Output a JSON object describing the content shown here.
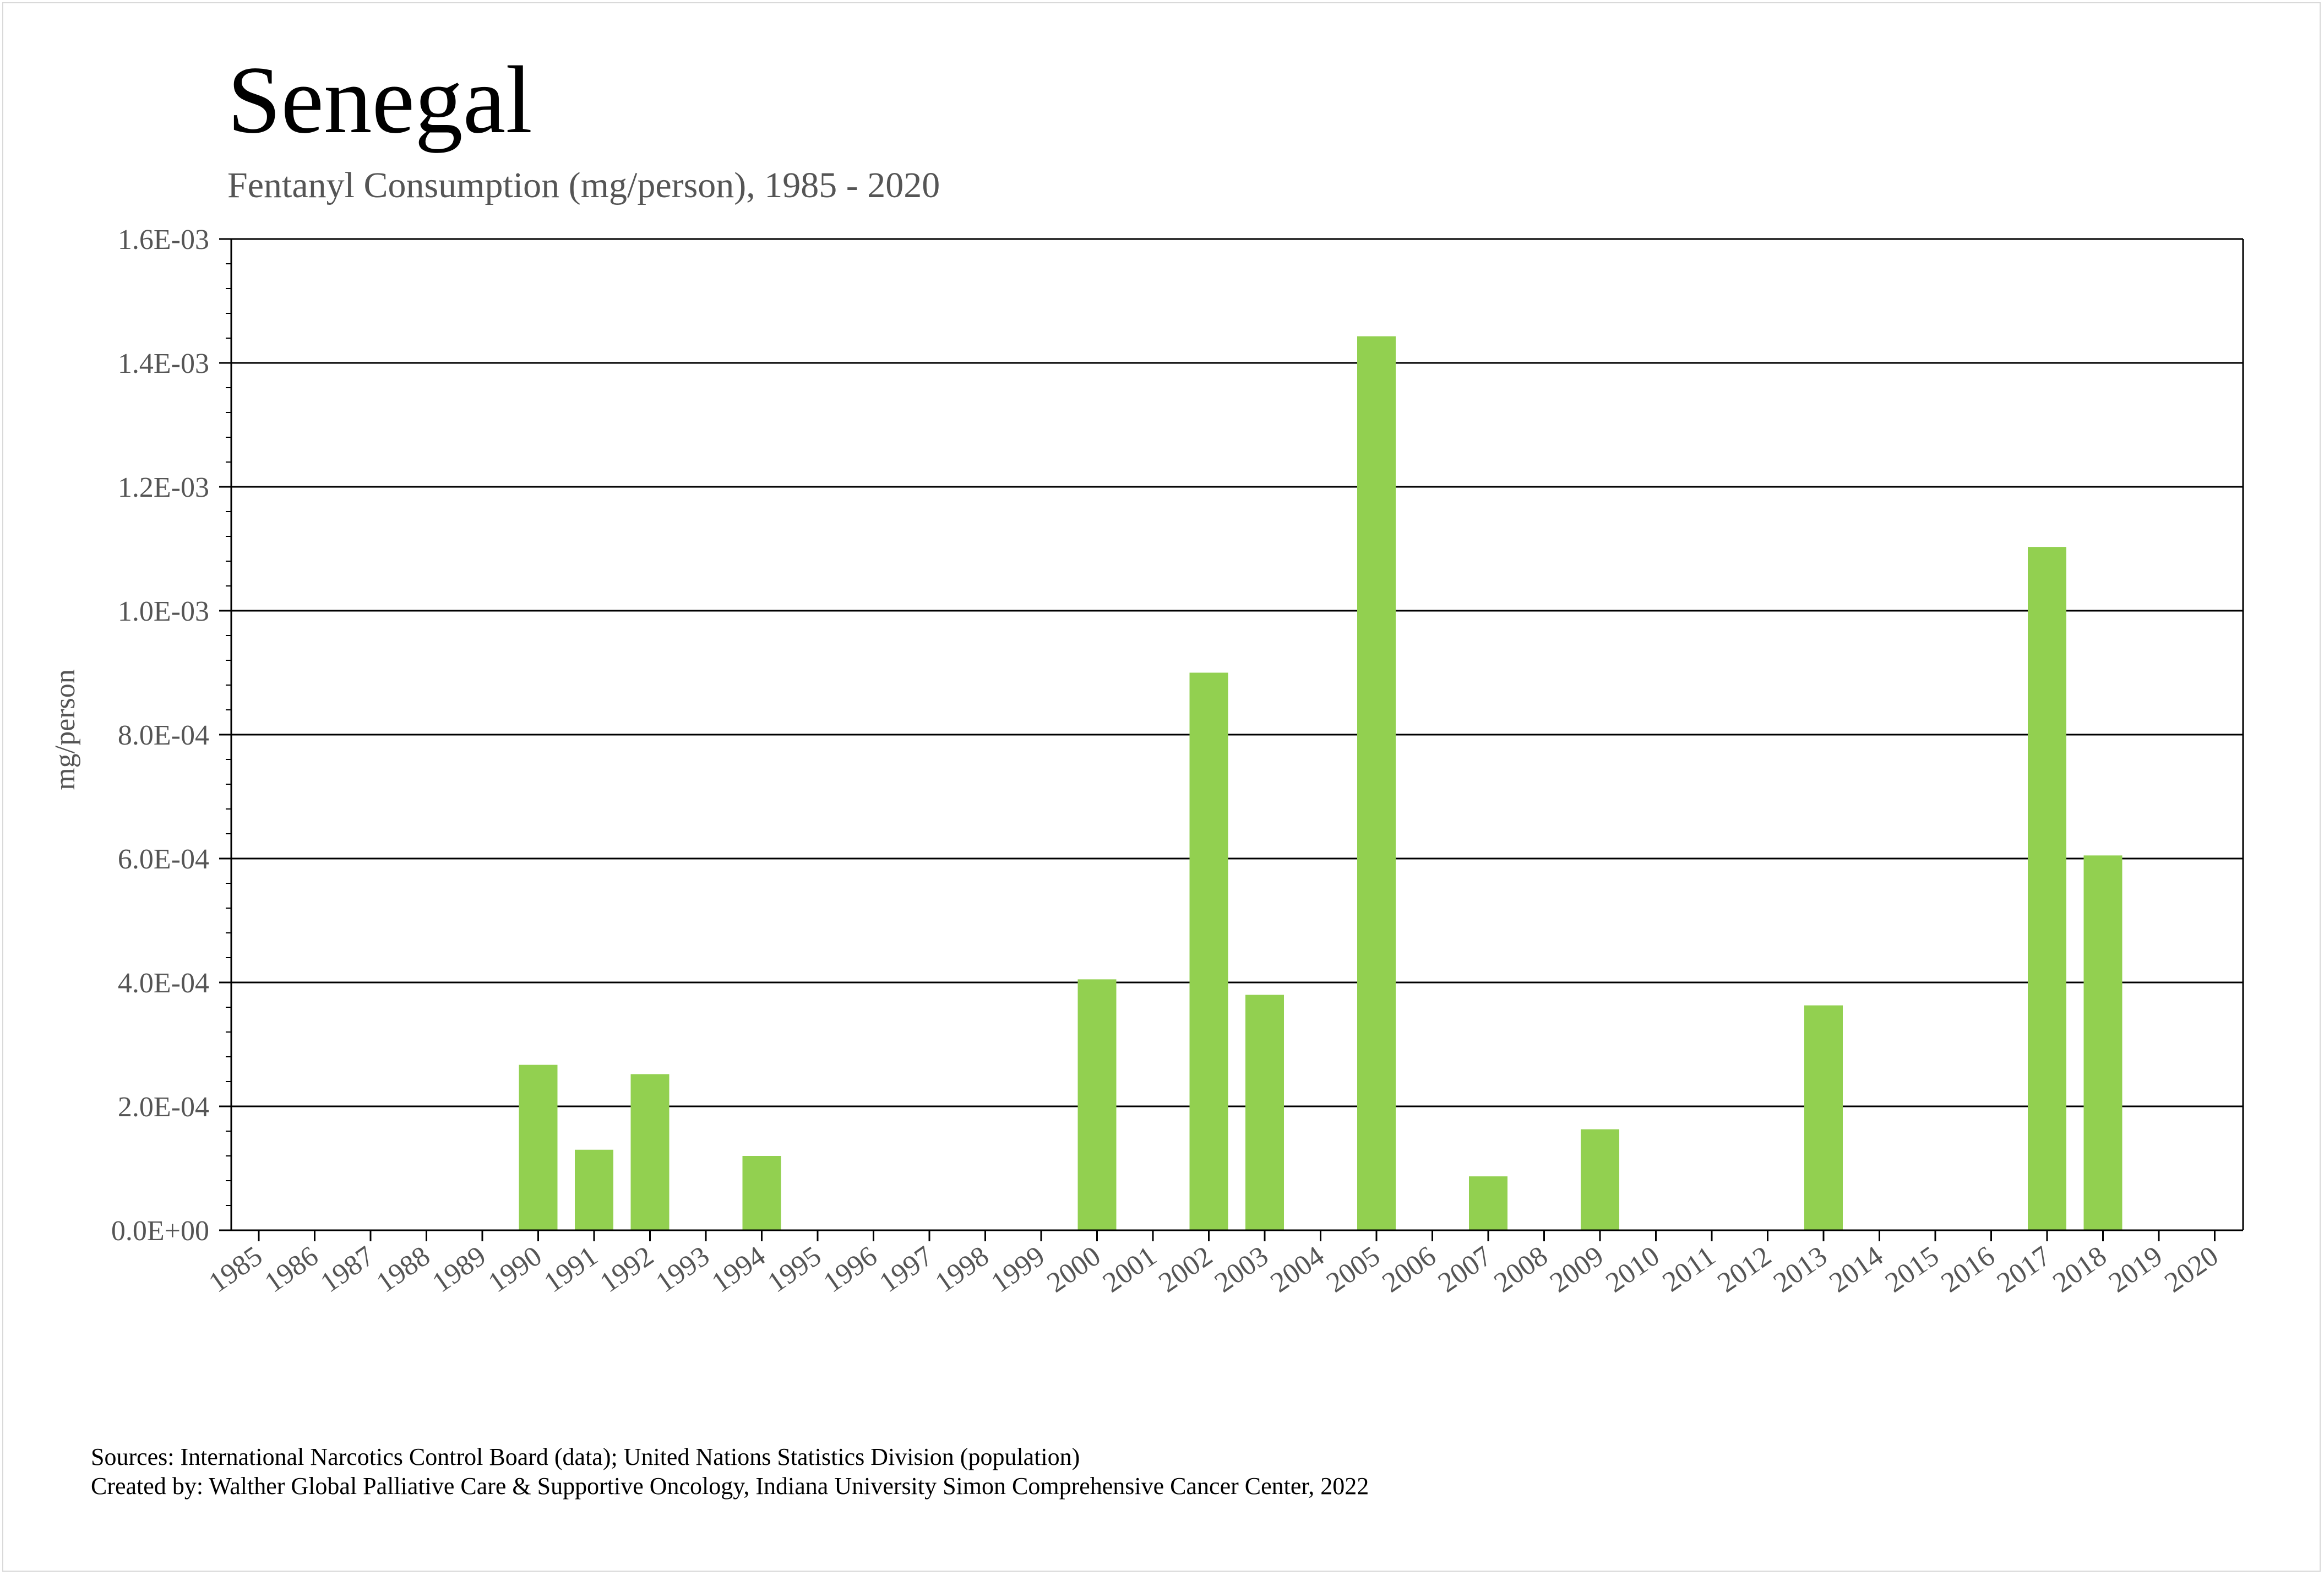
{
  "chart_data": {
    "type": "bar",
    "title": "Senegal",
    "subtitle": "Fentanyl Consumption (mg/person), 1985 - 2020",
    "xlabel": "",
    "ylabel": "mg/person",
    "ylim": [
      0,
      0.0016
    ],
    "yticks": [
      0,
      0.0002,
      0.0004,
      0.0006,
      0.0008,
      0.001,
      0.0012,
      0.0014,
      0.0016
    ],
    "ytick_labels": [
      "0.0E+00",
      "2.0E-04",
      "4.0E-04",
      "6.0E-04",
      "8.0E-04",
      "1.0E-03",
      "1.2E-03",
      "1.4E-03",
      "1.6E-03"
    ],
    "grid": true,
    "bar_color": "#92d050",
    "categories": [
      "1985",
      "1986",
      "1987",
      "1988",
      "1989",
      "1990",
      "1991",
      "1992",
      "1993",
      "1994",
      "1995",
      "1996",
      "1997",
      "1998",
      "1999",
      "2000",
      "2001",
      "2002",
      "2003",
      "2004",
      "2005",
      "2006",
      "2007",
      "2008",
      "2009",
      "2010",
      "2011",
      "2012",
      "2013",
      "2014",
      "2015",
      "2016",
      "2017",
      "2018",
      "2019",
      "2020"
    ],
    "values": [
      0,
      0,
      0,
      0,
      0,
      0.000267,
      0.00013,
      0.000252,
      0,
      0.00012,
      0,
      0,
      0,
      0,
      0,
      0.000405,
      0,
      0.0009,
      0.00038,
      0,
      0.001443,
      0,
      8.7e-05,
      0,
      0.000163,
      0,
      0,
      0,
      0.000363,
      0,
      0,
      0,
      0.001103,
      0.000605,
      0,
      0
    ]
  },
  "footer": {
    "sources": "Sources: International Narcotics Control Board (data); United Nations Statistics Division (population)",
    "created_by": "Created by: Walther Global Palliative Care & Supportive Oncology, Indiana University Simon Comprehensive Cancer Center, 2022"
  }
}
